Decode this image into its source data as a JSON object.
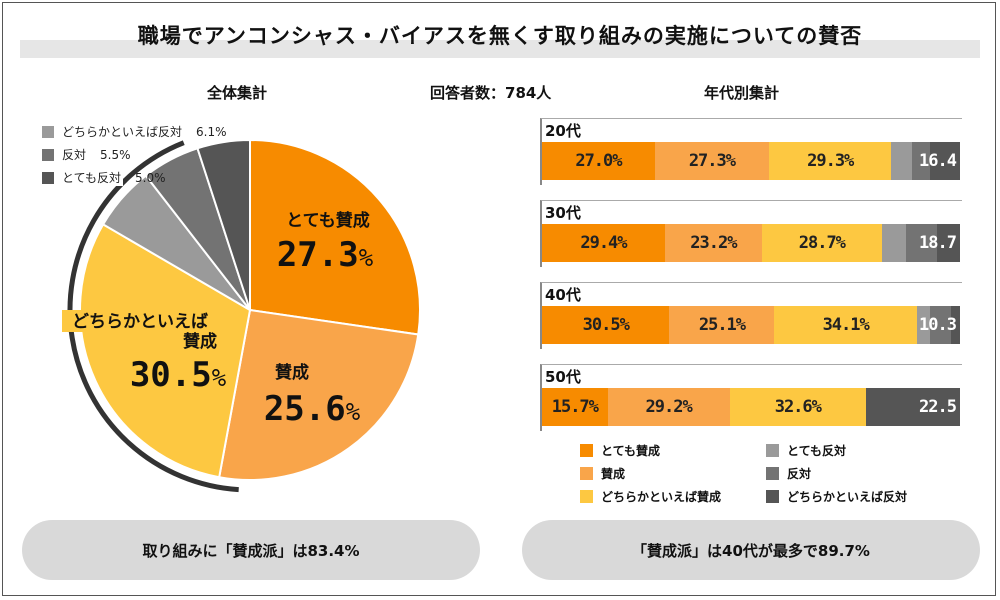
{
  "title": "職場でアンコンシャス・バイアスを無くす取り組みの実施についての賛否",
  "headers": {
    "overall": "全体集計",
    "respondents": "回答者数：784人",
    "by_age": "年代別集計"
  },
  "colors": {
    "very_agree": "#f78b00",
    "agree": "#f9a54a",
    "somewhat_agree": "#fdc841",
    "somewhat_oppose": "#9a9a9a",
    "oppose": "#737373",
    "strongly_oppose": "#555555"
  },
  "pie_legend": [
    {
      "label": "どちらかといえば反対",
      "pct": "6.1%",
      "color": "#9a9a9a"
    },
    {
      "label": "反対",
      "pct": "5.5%",
      "color": "#737373"
    },
    {
      "label": "とても反対",
      "pct": "5.0%",
      "color": "#555555"
    }
  ],
  "pie_labels": {
    "very_agree_name": "とても賛成",
    "very_agree_value": "27.3",
    "agree_name": "賛成",
    "agree_value": "25.6",
    "somewhat_name1": "どちらかといえば",
    "somewhat_name2": "賛成",
    "somewhat_value": "30.5",
    "unit": "%"
  },
  "age_groups": [
    {
      "label": "20代",
      "segments": [
        "27.0%",
        "27.3%",
        "29.3%",
        "16.4"
      ]
    },
    {
      "label": "30代",
      "segments": [
        "29.4%",
        "23.2%",
        "28.7%",
        "18.7"
      ]
    },
    {
      "label": "40代",
      "segments": [
        "30.5%",
        "25.1%",
        "34.1%",
        "10.3"
      ]
    },
    {
      "label": "50代",
      "segments": [
        "15.7%",
        "29.2%",
        "32.6%",
        "22.5"
      ]
    }
  ],
  "bar_legend": [
    {
      "label": "とても賛成",
      "color": "#f78b00"
    },
    {
      "label": "とても反対",
      "color": "#9a9a9a"
    },
    {
      "label": "賛成",
      "color": "#f9a54a"
    },
    {
      "label": "反対",
      "color": "#737373"
    },
    {
      "label": "どちらかといえば賛成",
      "color": "#fdc841"
    },
    {
      "label": "どちらかといえば反対",
      "color": "#555555"
    }
  ],
  "summaries": {
    "left": "取り組みに「賛成派」は83.4%",
    "right": "「賛成派」は40代が最多で89.7%"
  },
  "chart_data": [
    {
      "type": "pie",
      "title": "全体集計",
      "slices": [
        {
          "label": "とても賛成",
          "value": 27.3
        },
        {
          "label": "賛成",
          "value": 25.6
        },
        {
          "label": "どちらかといえば賛成",
          "value": 30.5
        },
        {
          "label": "どちらかといえば反対",
          "value": 6.1
        },
        {
          "label": "反対",
          "value": 5.5
        },
        {
          "label": "とても反対",
          "value": 5.0
        }
      ]
    },
    {
      "type": "bar",
      "stacked": true,
      "orientation": "horizontal",
      "title": "年代別集計",
      "categories": [
        "20代",
        "30代",
        "40代",
        "50代"
      ],
      "series": [
        {
          "name": "とても賛成",
          "values": [
            27.0,
            29.4,
            30.5,
            15.7
          ]
        },
        {
          "name": "賛成",
          "values": [
            27.3,
            23.2,
            25.1,
            29.2
          ]
        },
        {
          "name": "どちらかといえば賛成",
          "values": [
            29.3,
            28.7,
            34.1,
            32.6
          ]
        },
        {
          "name": "どちらかといえば反対",
          "values": [
            4.8,
            5.7,
            3.1,
            0.0
          ]
        },
        {
          "name": "反対",
          "values": [
            4.4,
            7.4,
            5.1,
            0.0
          ]
        },
        {
          "name": "とても反対",
          "values": [
            7.2,
            5.6,
            2.1,
            22.5
          ]
        }
      ],
      "segment_labels": [
        [
          "27.0%",
          "27.3%",
          "29.3%",
          "16.4"
        ],
        [
          "29.4%",
          "23.2%",
          "28.7%",
          "18.7"
        ],
        [
          "30.5%",
          "25.1%",
          "34.1%",
          "10.3"
        ],
        [
          "15.7%",
          "29.2%",
          "32.6%",
          "22.5"
        ]
      ],
      "xlim": [
        0,
        100
      ],
      "legend_position": "bottom"
    }
  ]
}
